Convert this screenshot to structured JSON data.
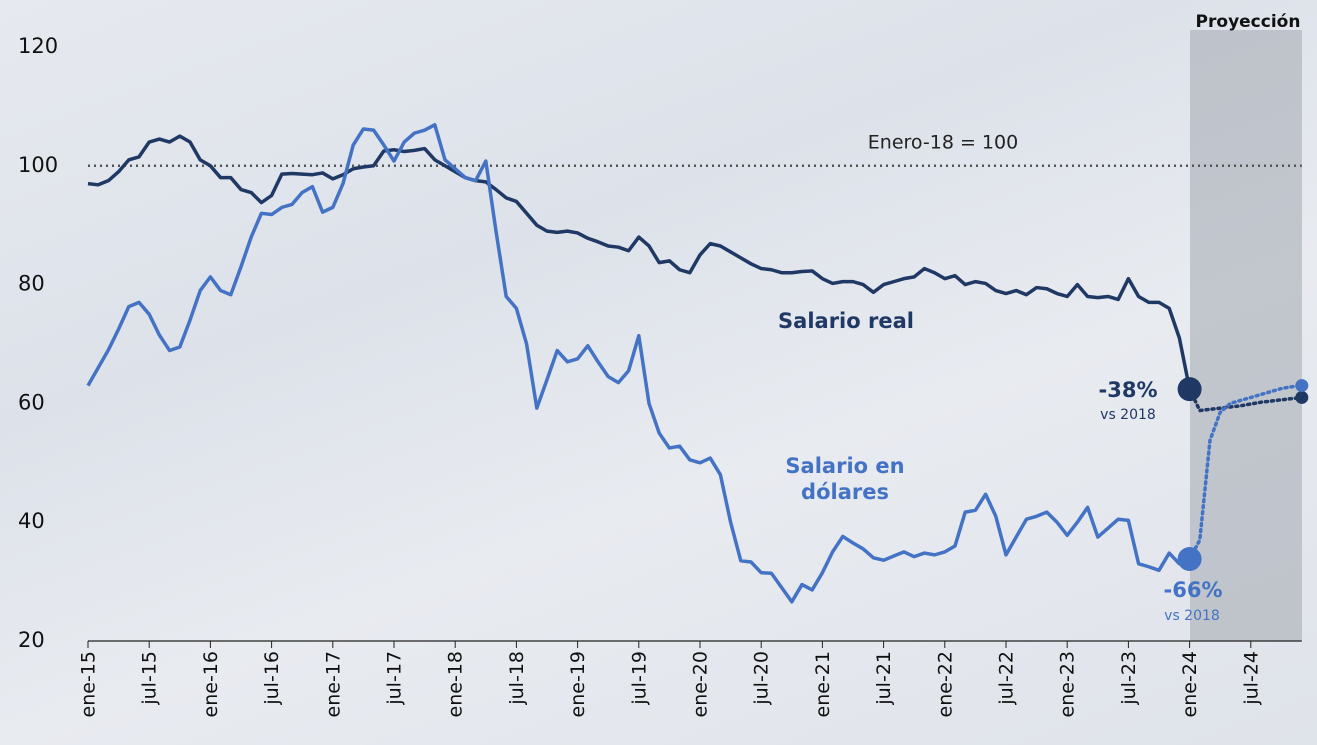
{
  "chart_data": {
    "type": "line",
    "categories": [
      "ene-15",
      null,
      null,
      null,
      null,
      null,
      "jul-15",
      null,
      null,
      null,
      null,
      null,
      "ene-16",
      null,
      null,
      null,
      null,
      null,
      "jul-16",
      null,
      null,
      null,
      null,
      null,
      "ene-17",
      null,
      null,
      null,
      null,
      null,
      "jul-17",
      null,
      null,
      null,
      null,
      null,
      "ene-18",
      null,
      null,
      null,
      null,
      null,
      "jul-18",
      null,
      null,
      null,
      null,
      null,
      "ene-19",
      null,
      null,
      null,
      null,
      null,
      "jul-19",
      null,
      null,
      null,
      null,
      null,
      "ene-20",
      null,
      null,
      null,
      null,
      null,
      "jul-20",
      null,
      null,
      null,
      null,
      null,
      "ene-21",
      null,
      null,
      null,
      null,
      null,
      "jul-21",
      null,
      null,
      null,
      null,
      null,
      "ene-22",
      null,
      null,
      null,
      null,
      null,
      "jul-22",
      null,
      null,
      null,
      null,
      null,
      "ene-23",
      null,
      null,
      null,
      null,
      null,
      "jul-23",
      null,
      null,
      null,
      null,
      null,
      "ene-24",
      null,
      null,
      null,
      null,
      null,
      "jul-24",
      null,
      null,
      null,
      null,
      null
    ],
    "series": [
      {
        "name": "Salario real",
        "color": "#1f3864",
        "end_label": "-38%",
        "end_note": "vs 2018",
        "values": [
          97,
          96.8,
          97.5,
          99,
          101,
          101.5,
          104,
          104.5,
          104,
          105,
          104,
          101,
          100,
          98,
          98,
          96,
          95.5,
          93.8,
          95,
          98.6,
          98.7,
          98.6,
          98.5,
          98.8,
          97.8,
          98.5,
          99.5,
          99.8,
          100,
          102.5,
          102.7,
          102.4,
          102.6,
          102.9,
          101,
          100,
          99,
          98,
          97.5,
          97.3,
          96,
          94.6,
          94,
          92,
          90,
          89,
          88.8,
          89,
          88.7,
          87.8,
          87.2,
          86.5,
          86.3,
          85.7,
          88,
          86.5,
          83.7,
          84,
          82.5,
          82,
          85,
          86.9,
          86.5,
          85.5,
          84.5,
          83.5,
          82.7,
          82.5,
          82,
          82,
          82.2,
          82.3,
          81,
          80.2,
          80.5,
          80.5,
          80,
          78.7,
          80,
          80.5,
          81,
          81.3,
          82.7,
          82,
          81,
          81.5,
          80,
          80.5,
          80.2,
          79,
          78.5,
          79,
          78.3,
          79.5,
          79.3,
          78.5,
          78,
          80,
          78,
          77.8,
          78,
          77.5,
          81,
          78,
          77,
          77,
          76,
          71,
          62.4,
          null,
          null,
          null,
          null,
          null,
          null,
          null,
          null,
          null,
          null,
          null
        ],
        "projected_values": [
          null,
          null,
          null,
          null,
          null,
          null,
          null,
          null,
          null,
          null,
          null,
          null,
          null,
          null,
          null,
          null,
          null,
          null,
          null,
          null,
          null,
          null,
          null,
          null,
          null,
          null,
          null,
          null,
          null,
          null,
          null,
          null,
          null,
          null,
          null,
          null,
          null,
          null,
          null,
          null,
          null,
          null,
          null,
          null,
          null,
          null,
          null,
          null,
          null,
          null,
          null,
          null,
          null,
          null,
          null,
          null,
          null,
          null,
          null,
          null,
          null,
          null,
          null,
          null,
          null,
          null,
          null,
          null,
          null,
          null,
          null,
          null,
          null,
          null,
          null,
          null,
          null,
          null,
          null,
          null,
          null,
          null,
          null,
          null,
          null,
          null,
          null,
          null,
          null,
          null,
          null,
          null,
          null,
          null,
          null,
          null,
          null,
          null,
          null,
          null,
          null,
          null,
          null,
          null,
          null,
          null,
          null,
          null,
          62.4,
          58.8,
          59.0,
          59.2,
          59.4,
          59.6,
          59.9,
          60.2,
          60.4,
          60.6,
          60.8,
          61.0
        ]
      },
      {
        "name": "Salario en dólares",
        "color": "#4472c4",
        "end_label": "-66%",
        "end_note": "vs 2018",
        "values": [
          63,
          66,
          69,
          72.5,
          76.3,
          77,
          75,
          71.5,
          68.9,
          69.5,
          74,
          79,
          81.3,
          79,
          78.3,
          83,
          88,
          92,
          91.8,
          93,
          93.5,
          95.5,
          96.5,
          92.2,
          93,
          97,
          103.5,
          106.2,
          106,
          103.5,
          100.8,
          104,
          105.5,
          106,
          106.9,
          101,
          99.5,
          98,
          97.5,
          100.8,
          89,
          78,
          76,
          70,
          59.2,
          64,
          68.9,
          67,
          67.5,
          69.7,
          67,
          64.5,
          63.5,
          65.5,
          71.4,
          60,
          55,
          52.5,
          52.8,
          50.5,
          50,
          50.8,
          48,
          40,
          33.5,
          33.3,
          31.5,
          31.4,
          29,
          26.6,
          29.5,
          28.6,
          31.5,
          35,
          37.6,
          36.5,
          35.5,
          34,
          33.6,
          34.3,
          35,
          34.2,
          34.8,
          34.5,
          35,
          36,
          41.7,
          42,
          44.7,
          41,
          34.5,
          37.5,
          40.5,
          41,
          41.7,
          40,
          37.8,
          40,
          42.5,
          37.5,
          39,
          40.5,
          40.3,
          33,
          32.5,
          31.9,
          34.8,
          33,
          33.8,
          null,
          null,
          null,
          null,
          null,
          null,
          null,
          null,
          null,
          null,
          null
        ],
        "projected_values": [
          null,
          null,
          null,
          null,
          null,
          null,
          null,
          null,
          null,
          null,
          null,
          null,
          null,
          null,
          null,
          null,
          null,
          null,
          null,
          null,
          null,
          null,
          null,
          null,
          null,
          null,
          null,
          null,
          null,
          null,
          null,
          null,
          null,
          null,
          null,
          null,
          null,
          null,
          null,
          null,
          null,
          null,
          null,
          null,
          null,
          null,
          null,
          null,
          null,
          null,
          null,
          null,
          null,
          null,
          null,
          null,
          null,
          null,
          null,
          null,
          null,
          null,
          null,
          null,
          null,
          null,
          null,
          null,
          null,
          null,
          null,
          null,
          null,
          null,
          null,
          null,
          null,
          null,
          null,
          null,
          null,
          null,
          null,
          null,
          null,
          null,
          null,
          null,
          null,
          null,
          null,
          null,
          null,
          null,
          null,
          null,
          null,
          null,
          null,
          null,
          null,
          null,
          null,
          null,
          null,
          null,
          null,
          null,
          33.8,
          37,
          53.8,
          58.5,
          60,
          60.5,
          61,
          61.5,
          62,
          62.5,
          62.8,
          63
        ]
      }
    ],
    "ylim": [
      20,
      120
    ],
    "yticks": [
      20,
      40,
      60,
      80,
      100,
      120
    ],
    "reference_line": {
      "value": 100,
      "label": "Enero-18 = 100"
    },
    "projection_label": "Proyección"
  }
}
